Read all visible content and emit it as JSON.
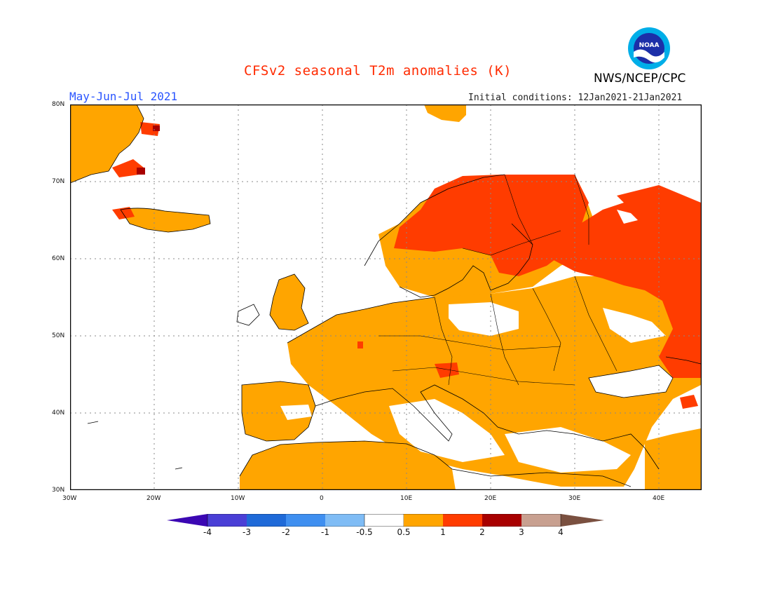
{
  "header": {
    "title": "CFSv2 seasonal T2m anomalies (K)",
    "period": "May-Jun-Jul 2021",
    "initial_conditions": "Initial conditions: 12Jan2021-21Jan2021",
    "organization": "NWS/NCEP/CPC",
    "logo_text": "NOAA"
  },
  "map": {
    "lat_labels": [
      "80N",
      "70N",
      "60N",
      "50N",
      "40N",
      "30N"
    ],
    "lon_labels": [
      "30W",
      "20W",
      "10W",
      "0",
      "10E",
      "20E",
      "30E",
      "40E"
    ],
    "lat_range": [
      30,
      80
    ],
    "lon_range": [
      -30,
      45
    ]
  },
  "colorbar": {
    "labels": [
      "-4",
      "-3",
      "-2",
      "-1",
      "-0.5",
      "0.5",
      "1",
      "2",
      "3",
      "4"
    ],
    "colors": [
      "#3b07b3",
      "#4a3fd6",
      "#1f6ad8",
      "#3f8ff0",
      "#7fbcf5",
      "#ffffff",
      "#ffa500",
      "#ff3c00",
      "#a80000",
      "#c8a090",
      "#7a5040"
    ]
  }
}
